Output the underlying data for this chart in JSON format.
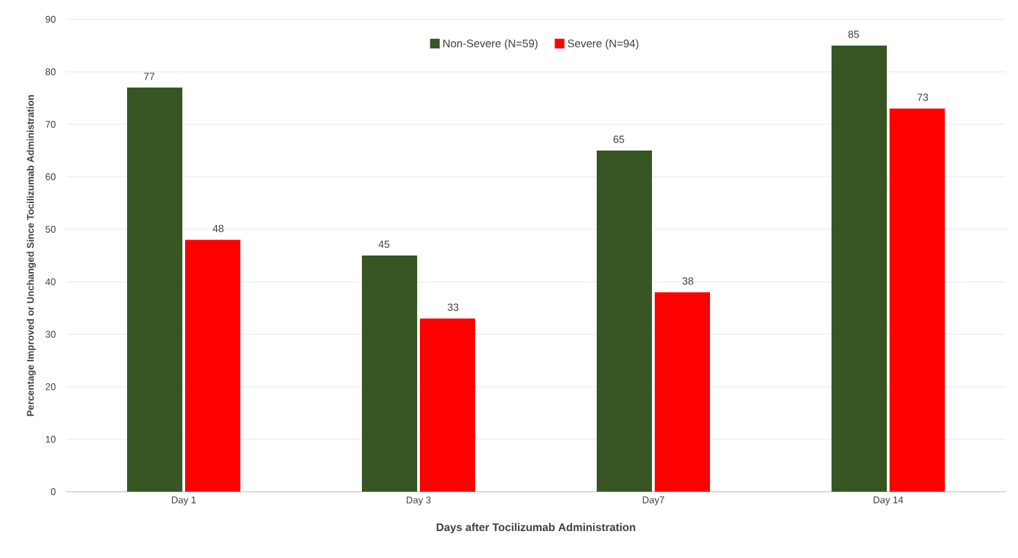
{
  "chart_data": {
    "type": "bar",
    "xlabel": "Days after Tocilizumab Administration",
    "ylabel": "Percentage Improved or Unchanged Since Tocilizumab Administration",
    "categories": [
      "Day 1",
      "Day 3",
      "Day7",
      "Day 14"
    ],
    "series": [
      {
        "name": "Non-Severe (N=59)",
        "color": "#375623",
        "values": [
          77,
          45,
          65,
          85
        ]
      },
      {
        "name": "Severe (N=94)",
        "color": "#ff0000",
        "values": [
          48,
          33,
          38,
          73
        ]
      }
    ],
    "ylim": [
      0,
      90
    ],
    "yticks": [
      0,
      10,
      20,
      30,
      40,
      50,
      60,
      70,
      80,
      90
    ],
    "grid": "y",
    "legend": "top",
    "data_labels": true
  }
}
